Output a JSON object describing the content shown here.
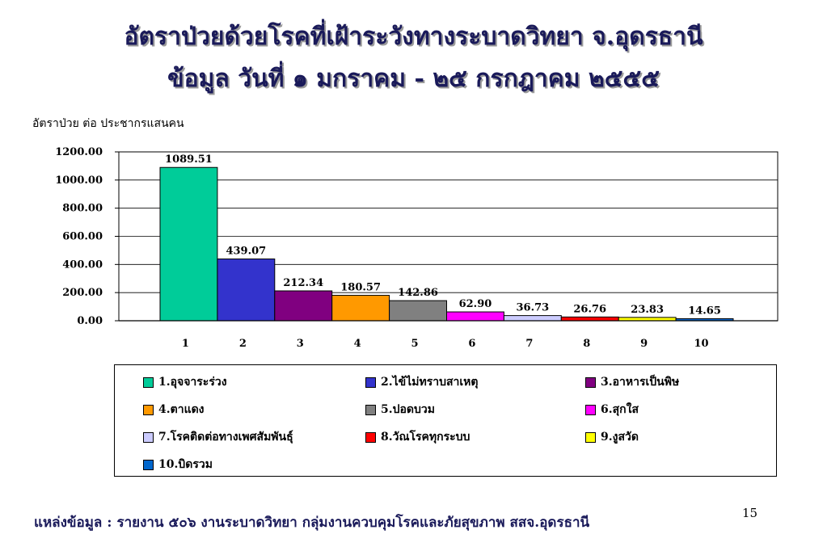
{
  "header": {
    "title_line1": "อัตราป่วยด้วยโรคที่เฝ้าระวังทางระบาดวิทยา  จ.อุดรธานี",
    "title_line2": "ข้อมูล  วันที่ ๑ มกราคม  -  ๒๕ กรกฎาคม ๒๕๕๕"
  },
  "footer": {
    "source": "แหล่งข้อมูล : รายงาน ๕๐๖ งานระบาดวิทยา กลุ่มงานควบคุมโรคและภัยสุขภาพ  สสจ.อุดรธานี",
    "page_number": "15"
  },
  "chart_data": {
    "type": "bar",
    "title": "",
    "ylabel": "อัตราป่วย ต่อ ประชากรแสนคน",
    "xlabel": "",
    "ylim": [
      0,
      1200
    ],
    "yticks": [
      "0.00",
      "200.00",
      "400.00",
      "600.00",
      "800.00",
      "1000.00",
      "1200.00"
    ],
    "grid": true,
    "legend_position": "bottom",
    "categories": [
      "1",
      "2",
      "3",
      "4",
      "5",
      "6",
      "7",
      "8",
      "9",
      "10"
    ],
    "values": [
      1089.51,
      439.07,
      212.34,
      180.57,
      142.86,
      62.9,
      36.73,
      26.76,
      23.83,
      14.65
    ],
    "data_labels": [
      "1089.51",
      "439.07",
      "212.34",
      "180.57",
      "142.86",
      "62.90",
      "36.73",
      "26.76",
      "23.83",
      "14.65"
    ],
    "colors": [
      "#00cc99",
      "#3333cc",
      "#800080",
      "#ff9900",
      "#808080",
      "#ff00ff",
      "#ccccff",
      "#ff0000",
      "#ffff00",
      "#0066cc"
    ],
    "legend": [
      "1.อุจจาระร่วง",
      "2.ไข้ไม่ทราบสาเหตุ",
      "3.อาหารเป็นพิษ",
      "4.ตาแดง",
      "5.ปอดบวม",
      "6.สุกใส",
      "7.โรคติดต่อทางเพศสัมพันธุ์",
      "8.วัณโรคทุกระบบ",
      "9.งูสวัด",
      "10.บิดรวม"
    ]
  }
}
